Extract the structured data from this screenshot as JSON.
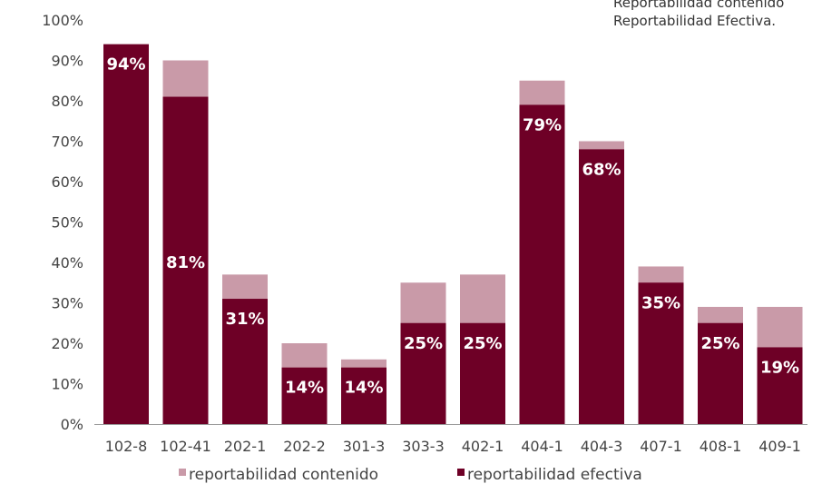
{
  "chart_data": {
    "type": "bar",
    "stacked": false,
    "overlay": true,
    "categories": [
      "102-8",
      "102-41",
      "202-1",
      "202-2",
      "301-3",
      "303-3",
      "402-1",
      "404-1",
      "404-3",
      "407-1",
      "408-1",
      "409-1"
    ],
    "series": [
      {
        "name": "reportabilidad contenido",
        "color": "#c99aa8",
        "values": [
          94,
          90,
          37,
          20,
          16,
          35,
          37,
          85,
          70,
          39,
          29,
          29
        ]
      },
      {
        "name": "reportabilidad efectiva",
        "color": "#6e0026",
        "values": [
          94,
          81,
          31,
          14,
          14,
          25,
          25,
          79,
          68,
          35,
          25,
          19
        ],
        "data_labels": [
          "94%",
          "81%",
          "31%",
          "14%",
          "14%",
          "25%",
          "25%",
          "79%",
          "68%",
          "35%",
          "25%",
          "19%"
        ]
      }
    ],
    "yticks": [
      "0%",
      "10%",
      "20%",
      "30%",
      "40%",
      "50%",
      "60%",
      "70%",
      "80%",
      "90%",
      "100%"
    ],
    "ylim": [
      0,
      100
    ],
    "grid": false,
    "legend_position": "bottom"
  },
  "note": {
    "line1": "Reportabilidad contenido",
    "line2": "Reportabilidad Efectiva."
  }
}
